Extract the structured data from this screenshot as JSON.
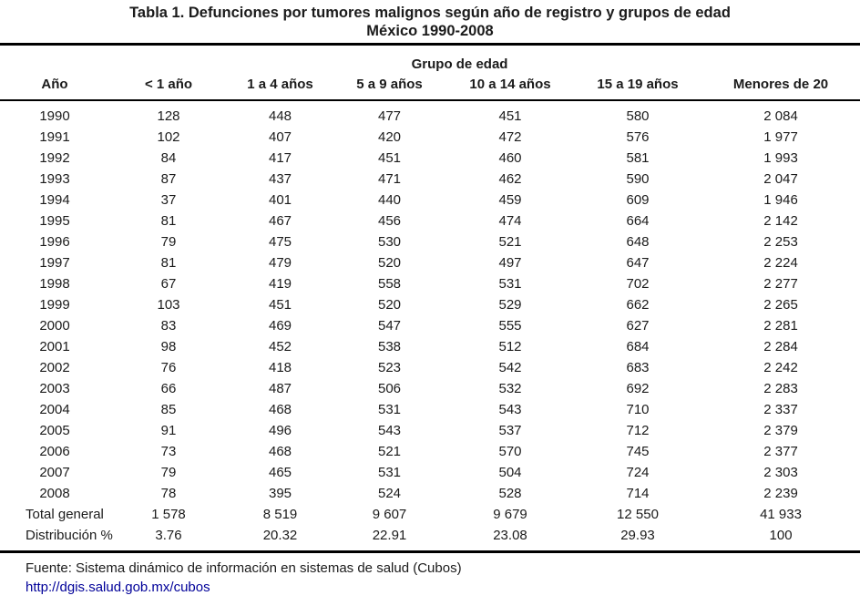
{
  "title": {
    "line1": "Tabla 1. Defunciones por tumores malignos según año de registro y grupos de edad",
    "line2": "México 1990-2008"
  },
  "table": {
    "group_header": "Grupo de edad",
    "columns": [
      "Año",
      "< 1 año",
      "1 a 4 años",
      "5 a 9 años",
      "10 a 14 años",
      "15 a 19 años",
      "Menores de 20"
    ],
    "rows": [
      {
        "year": "1990",
        "values": [
          "128",
          "448",
          "477",
          "451",
          "580",
          "2 084"
        ]
      },
      {
        "year": "1991",
        "values": [
          "102",
          "407",
          "420",
          "472",
          "576",
          "1 977"
        ]
      },
      {
        "year": "1992",
        "values": [
          "84",
          "417",
          "451",
          "460",
          "581",
          "1 993"
        ]
      },
      {
        "year": "1993",
        "values": [
          "87",
          "437",
          "471",
          "462",
          "590",
          "2 047"
        ]
      },
      {
        "year": "1994",
        "values": [
          "37",
          "401",
          "440",
          "459",
          "609",
          "1 946"
        ]
      },
      {
        "year": "1995",
        "values": [
          "81",
          "467",
          "456",
          "474",
          "664",
          "2 142"
        ]
      },
      {
        "year": "1996",
        "values": [
          "79",
          "475",
          "530",
          "521",
          "648",
          "2 253"
        ]
      },
      {
        "year": "1997",
        "values": [
          "81",
          "479",
          "520",
          "497",
          "647",
          "2 224"
        ]
      },
      {
        "year": "1998",
        "values": [
          "67",
          "419",
          "558",
          "531",
          "702",
          "2 277"
        ]
      },
      {
        "year": "1999",
        "values": [
          "103",
          "451",
          "520",
          "529",
          "662",
          "2 265"
        ]
      },
      {
        "year": "2000",
        "values": [
          "83",
          "469",
          "547",
          "555",
          "627",
          "2 281"
        ]
      },
      {
        "year": "2001",
        "values": [
          "98",
          "452",
          "538",
          "512",
          "684",
          "2 284"
        ]
      },
      {
        "year": "2002",
        "values": [
          "76",
          "418",
          "523",
          "542",
          "683",
          "2 242"
        ]
      },
      {
        "year": "2003",
        "values": [
          "66",
          "487",
          "506",
          "532",
          "692",
          "2 283"
        ]
      },
      {
        "year": "2004",
        "values": [
          "85",
          "468",
          "531",
          "543",
          "710",
          "2 337"
        ]
      },
      {
        "year": "2005",
        "values": [
          "91",
          "496",
          "543",
          "537",
          "712",
          "2 379"
        ]
      },
      {
        "year": "2006",
        "values": [
          "73",
          "468",
          "521",
          "570",
          "745",
          "2 377"
        ]
      },
      {
        "year": "2007",
        "values": [
          "79",
          "465",
          "531",
          "504",
          "724",
          "2 303"
        ]
      },
      {
        "year": "2008",
        "values": [
          "78",
          "395",
          "524",
          "528",
          "714",
          "2 239"
        ]
      }
    ],
    "summary_rows": [
      {
        "label": "Total general",
        "values": [
          "1 578",
          "8 519",
          "9 607",
          "9 679",
          "12 550",
          "41 933"
        ]
      },
      {
        "label": "Distribución %",
        "values": [
          "3.76",
          "20.32",
          "22.91",
          "23.08",
          "29.93",
          "100"
        ]
      }
    ]
  },
  "footer": {
    "source": "Fuente: Sistema dinámico de información en sistemas de salud (Cubos)",
    "link": "http://dgis.salud.gob.mx/cubos",
    "link_color": "#000099"
  }
}
